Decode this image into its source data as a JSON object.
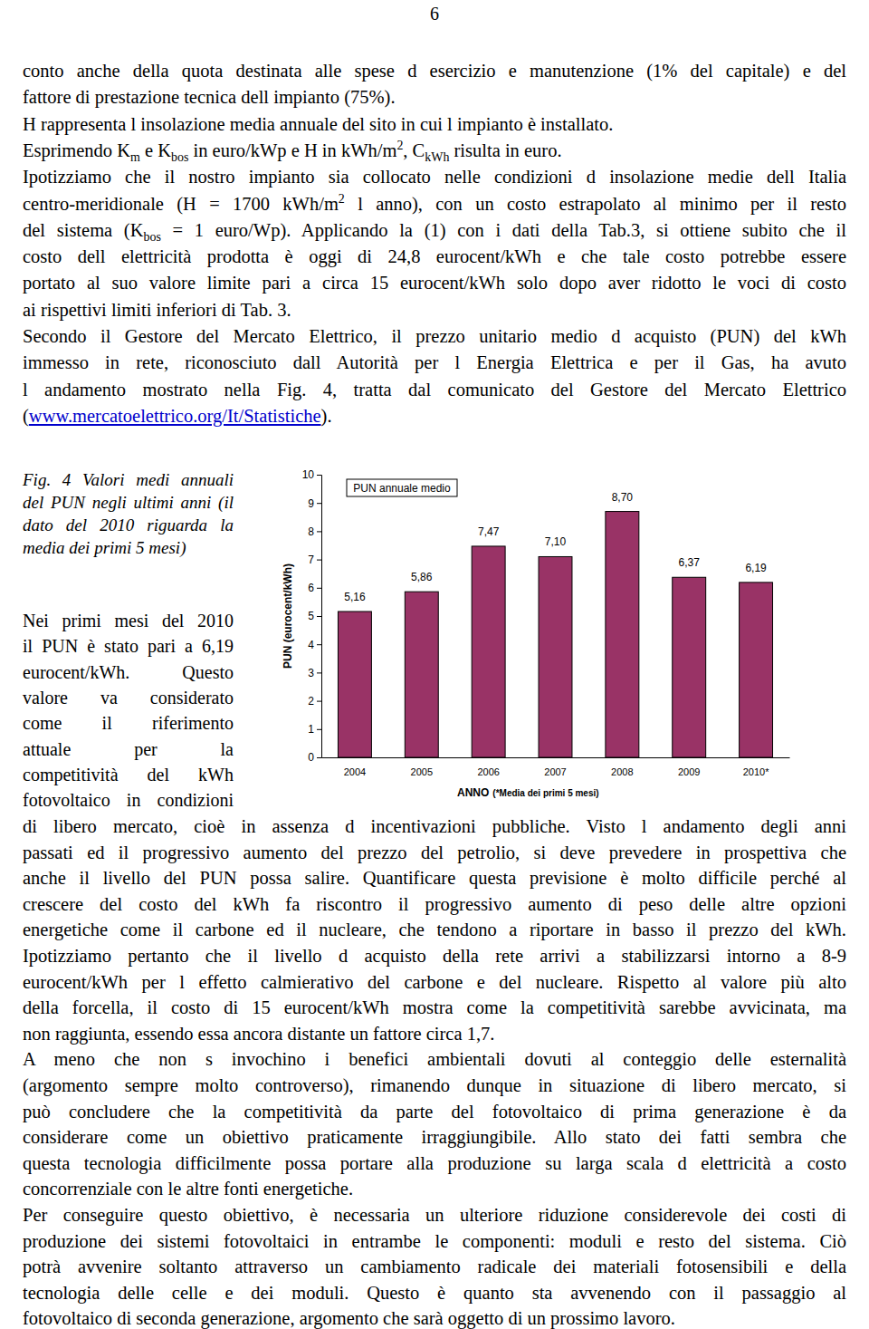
{
  "page_number": "6",
  "top_paragraphs": [
    [
      "conto anche della quota destinata alle spese d esercizio e manutenzione (1% del capitale) e del",
      "fattore di prestazione tecnica dell impianto (75%)."
    ],
    [
      "H rappresenta l insolazione media annuale del sito in cui l impianto è installato."
    ],
    [
      [
        "Esprimendo K",
        {
          "sub": "m"
        },
        " e K",
        {
          "sub": "bos"
        },
        " in euro/kWp e H in kWh/m",
        {
          "sup": "2"
        },
        ", C",
        {
          "sub": "kWh"
        },
        " risulta in euro."
      ]
    ],
    [
      "Ipotizziamo che il nostro impianto sia collocato nelle condizioni d insolazione medie dell Italia",
      [
        "centro-meridionale (H = 1700 kWh/m",
        {
          "sup": "2"
        },
        " l anno), con un costo estrapolato al minimo per il resto"
      ],
      [
        "del sistema (K",
        {
          "sub": "bos"
        },
        " = 1 euro/Wp). Applicando la (1) con i dati della Tab.3, si ottiene subito che il"
      ],
      "costo dell elettricità prodotta è oggi di 24,8 eurocent/kWh e che tale costo potrebbe essere",
      "portato al suo valore limite pari a circa 15 eurocent/kWh solo dopo aver ridotto le voci di costo",
      "ai rispettivi limiti inferiori di Tab. 3."
    ],
    [
      "Secondo il Gestore del Mercato Elettrico, il prezzo unitario medio d acquisto (PUN) del kWh",
      "immesso in rete, riconosciuto dall Autorità per l Energia Elettrica e per il Gas, ha avuto",
      "l andamento mostrato nella Fig. 4, tratta dal comunicato del Gestore del Mercato Elettrico",
      [
        "(",
        {
          "link": "www.mercatoelettrico.org/It/Statistiche"
        },
        ")."
      ]
    ]
  ],
  "figure": {
    "caption": [
      "Fig. 4 Valori medi annuali",
      "del PUN negli ultimi anni (il",
      "dato del 2010 riguarda la",
      "media dei primi 5 mesi)"
    ],
    "side_text": [
      "Nei primi mesi del 2010",
      "il PUN è stato pari a 6,19",
      "eurocent/kWh. Questo",
      "valore va considerato",
      "come il riferimento",
      "attuale per la",
      "competitività del kWh",
      "fotovoltaico in condizioni"
    ]
  },
  "chart_data": {
    "type": "bar",
    "title": "PUN annuale medio",
    "categories": [
      "2004",
      "2005",
      "2006",
      "2007",
      "2008",
      "2009",
      "2010*"
    ],
    "values": [
      5.16,
      5.86,
      7.47,
      7.1,
      8.7,
      6.37,
      6.19
    ],
    "value_labels": [
      "5,16",
      "5,86",
      "7,47",
      "7,10",
      "8,70",
      "6,37",
      "6,19"
    ],
    "data_labels": true,
    "color": "#993366",
    "y_label": "PUN (eurocent/kWh)",
    "x_label": "ANNO",
    "annotations": [
      "(*Media dei primi 5 mesi)"
    ],
    "ylim": [
      0,
      10
    ],
    "yticks": [
      0,
      1,
      2,
      3,
      4,
      5,
      6,
      7,
      8,
      9,
      10
    ],
    "grid": false
  },
  "bottom_paragraphs": [
    [
      "di libero mercato, cioè in assenza d incentivazioni pubbliche. Visto l andamento degli anni",
      "passati ed il progressivo aumento del prezzo del petrolio, si deve prevedere in prospettiva che",
      "anche il livello del PUN possa salire. Quantificare questa previsione è molto difficile perché al",
      "crescere del costo del kWh fa riscontro il progressivo aumento di peso delle altre opzioni",
      "energetiche come il carbone ed il nucleare, che tendono a riportare in basso il prezzo del kWh.",
      "Ipotizziamo pertanto che il livello d acquisto della rete arrivi a stabilizzarsi intorno a 8-9",
      "eurocent/kWh per l effetto calmierativo del carbone e del nucleare. Rispetto al valore più alto",
      "della forcella, il costo di 15 eurocent/kWh mostra come la competitività sarebbe avvicinata, ma",
      "non raggiunta, essendo essa ancora distante un fattore circa 1,7."
    ],
    [
      "A meno che non s invochino i benefici ambientali dovuti al conteggio delle esternalità",
      "(argomento sempre molto controverso), rimanendo dunque in situazione di libero mercato, si",
      "può concludere che la competitività da parte del fotovoltaico di prima generazione è da",
      "considerare come un obiettivo praticamente irraggiungibile. Allo stato dei fatti sembra che",
      "questa tecnologia difficilmente possa portare alla produzione su larga scala d elettricità a costo",
      "concorrenziale con le altre fonti energetiche."
    ],
    [
      "Per conseguire questo obiettivo, è necessaria un ulteriore riduzione considerevole dei costi di",
      "produzione dei sistemi fotovoltaici in entrambe le componenti: moduli e resto del sistema. Ciò",
      "potrà avvenire soltanto attraverso un cambiamento radicale dei materiali fotosensibili e della",
      "tecnologia delle celle e dei moduli. Questo è quanto sta avvenendo con il passaggio al",
      "fotovoltaico di seconda generazione, argomento che sarà oggetto di un prossimo lavoro."
    ]
  ]
}
